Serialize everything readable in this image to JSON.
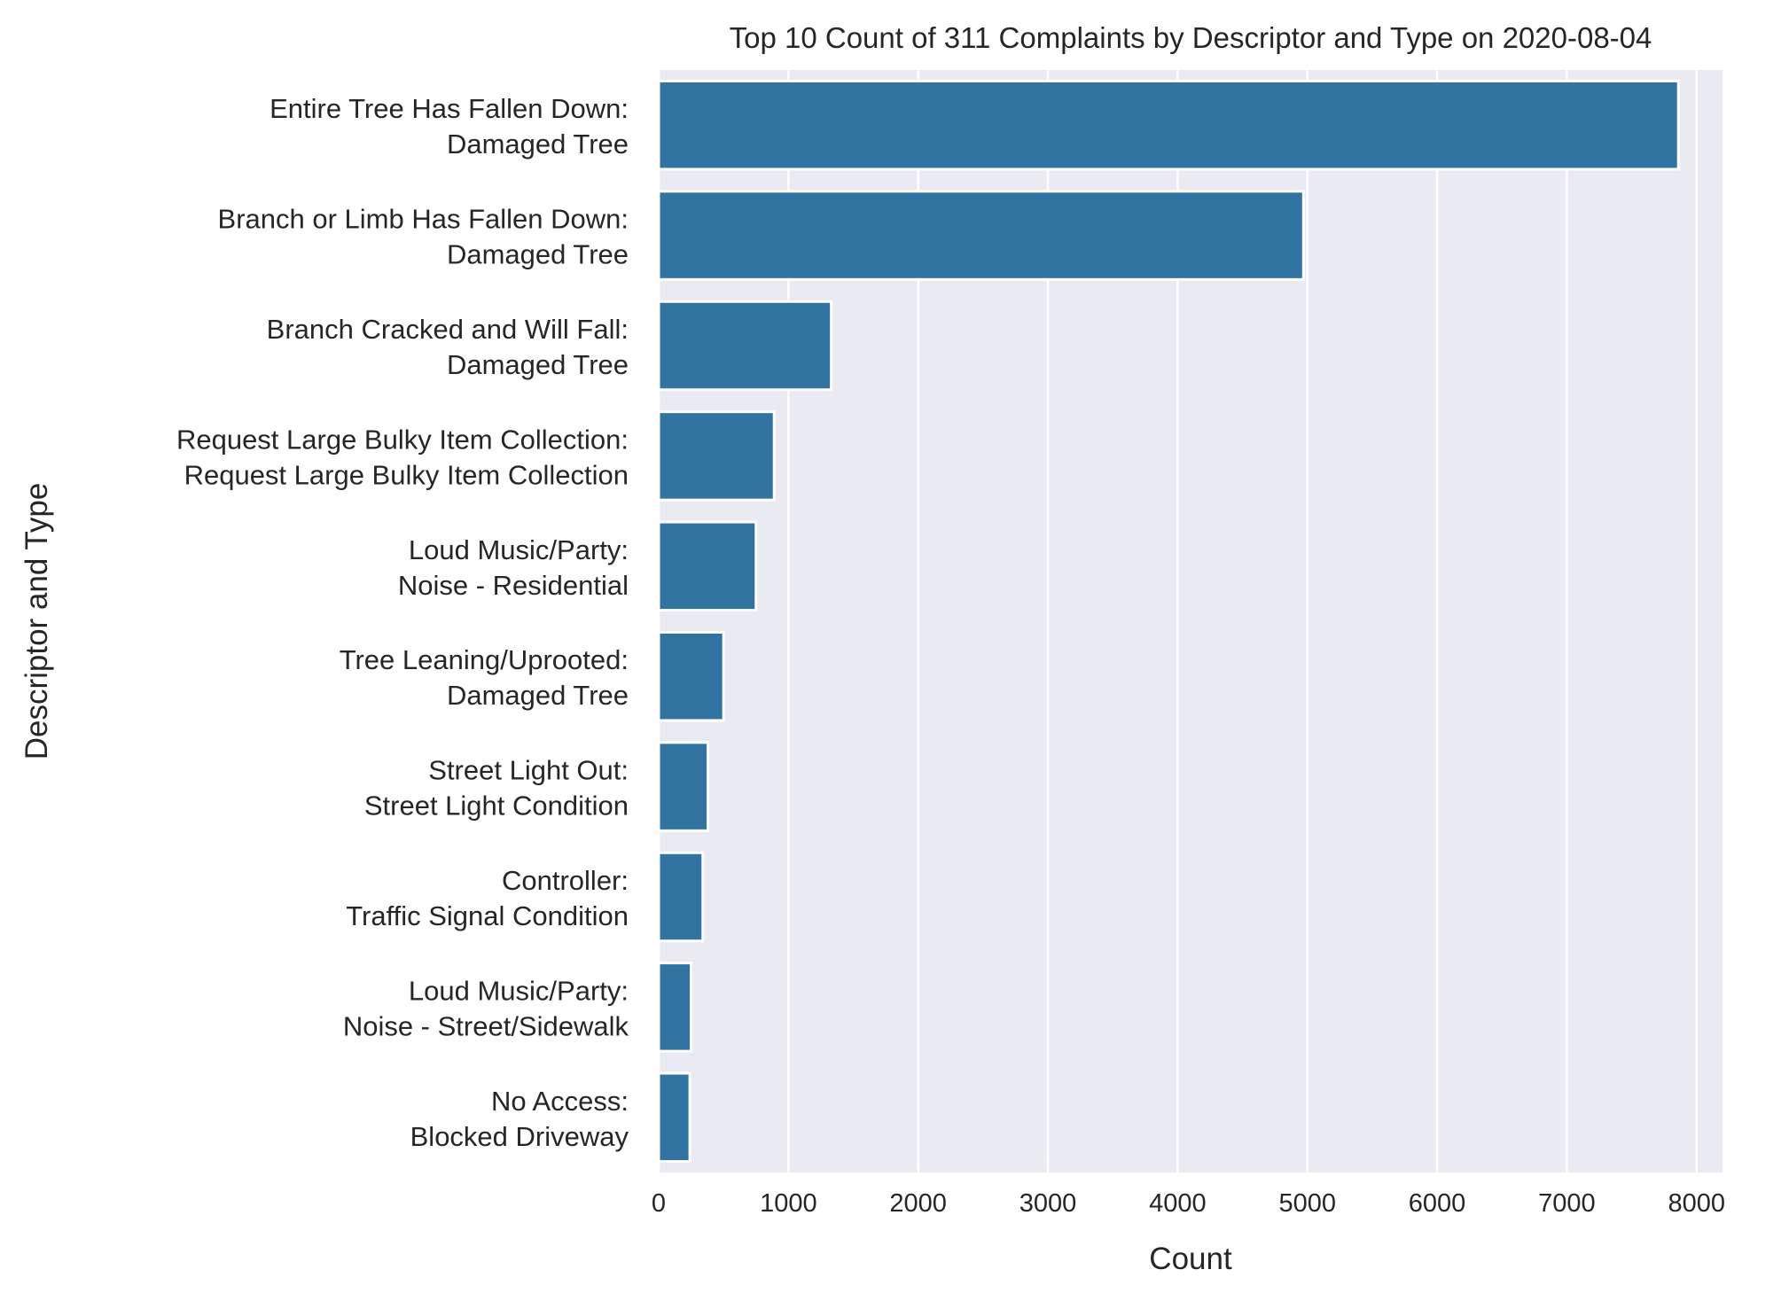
{
  "chart_data": {
    "type": "bar",
    "orientation": "horizontal",
    "title": "Top 10 Count of 311 Complaints by Descriptor and Type on 2020-08-04",
    "xlabel": "Count",
    "ylabel": "Descriptor and Type",
    "xlim": [
      0,
      8200
    ],
    "xticks": [
      "0",
      "1000",
      "2000",
      "3000",
      "4000",
      "5000",
      "6000",
      "7000",
      "8000"
    ],
    "grid": true,
    "bar_color": "#3274a1",
    "background_color": "#eaeaf2",
    "categories": [
      [
        "Entire Tree Has Fallen Down:",
        "Damaged Tree"
      ],
      [
        "Branch or Limb Has Fallen Down:",
        "Damaged Tree"
      ],
      [
        "Branch Cracked and Will Fall:",
        "Damaged Tree"
      ],
      [
        "Request Large Bulky Item Collection:",
        "Request Large Bulky Item Collection"
      ],
      [
        "Loud Music/Party:",
        "Noise - Residential"
      ],
      [
        "Tree Leaning/Uprooted:",
        "Damaged Tree"
      ],
      [
        "Street Light Out:",
        "Street Light Condition"
      ],
      [
        "Controller:",
        "Traffic Signal Condition"
      ],
      [
        "Loud Music/Party:",
        "Noise - Street/Sidewalk"
      ],
      [
        "No Access:",
        "Blocked Driveway"
      ]
    ],
    "values": [
      7860,
      4970,
      1330,
      890,
      750,
      500,
      380,
      340,
      250,
      240
    ]
  }
}
